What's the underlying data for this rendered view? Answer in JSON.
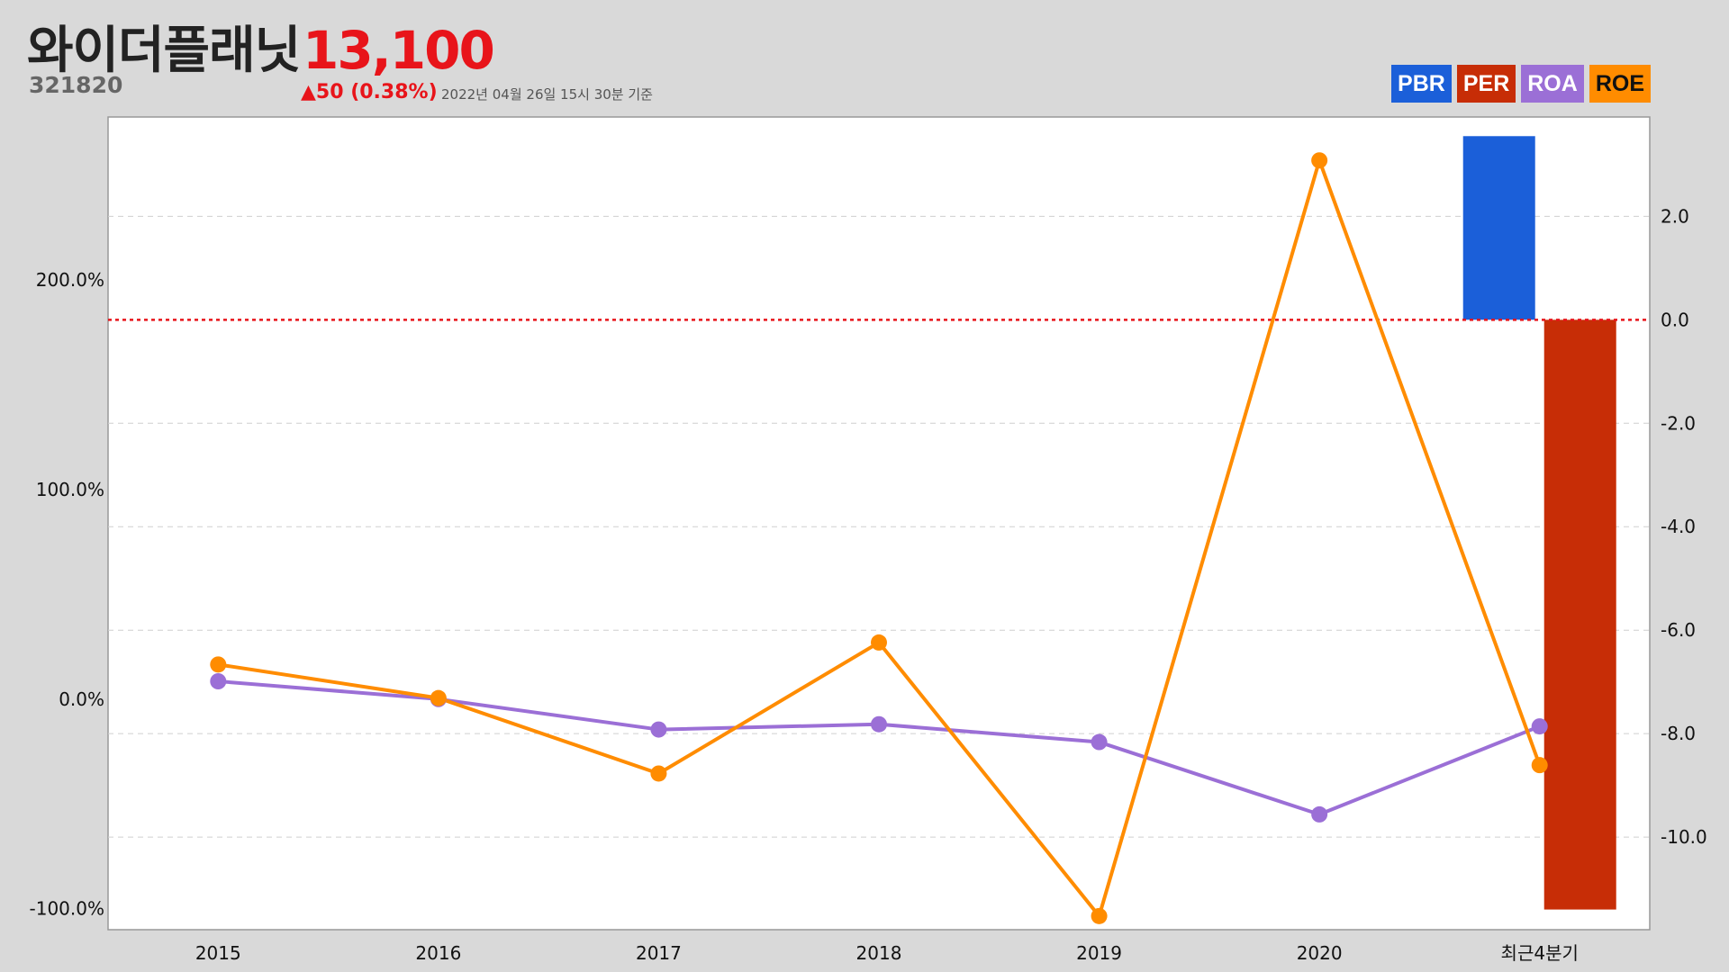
{
  "header": {
    "company_name": "와이더플래닛",
    "ticker": "321820",
    "price": "13,100",
    "change": "▲50 (0.38%)",
    "timestamp": "2022년 04월 26일 15시 30분 기준"
  },
  "legend": [
    {
      "label": "PBR",
      "color": "#1b5fd9",
      "text_color": "#ffffff"
    },
    {
      "label": "PER",
      "color": "#c72d06",
      "text_color": "#ffffff"
    },
    {
      "label": "ROA",
      "color": "#9b6fd6",
      "text_color": "#ffffff"
    },
    {
      "label": "ROE",
      "color": "#ff8c00",
      "text_color": "#111111"
    }
  ],
  "chart_data": {
    "type": "line",
    "categories": [
      "2015",
      "2016",
      "2017",
      "2018",
      "2019",
      "2020",
      "최근4분기"
    ],
    "series": [
      {
        "name": "ROA",
        "axis": "left",
        "color": "#9b6fd6",
        "values": [
          8.5,
          0.0,
          -14.5,
          -12.0,
          -20.5,
          -55.0,
          -13.0
        ]
      },
      {
        "name": "ROE",
        "axis": "left",
        "color": "#ff8c00",
        "values": [
          16.5,
          0.5,
          -35.5,
          27.0,
          -103.5,
          257.0,
          -31.5
        ]
      }
    ],
    "bars": [
      {
        "name": "PBR",
        "axis": "right",
        "color": "#1b5fd9",
        "category": "최근4분기",
        "value": 3.55
      },
      {
        "name": "PER",
        "axis": "right",
        "color": "#c72d06",
        "category": "최근4분기",
        "value": -11.4
      }
    ],
    "left_axis": {
      "ticks": [
        -100,
        0,
        100,
        200
      ],
      "tick_labels": [
        "-100.0%",
        "0.0%",
        "100.0%",
        "200.0%"
      ],
      "ylim": [
        -110,
        277.7
      ]
    },
    "right_axis": {
      "ticks": [
        2,
        0,
        -2,
        -4,
        -6,
        -8,
        -10
      ],
      "tick_labels": [
        "2.0",
        "0.0",
        "-2.0",
        "-4.0",
        "-6.0",
        "-8.0",
        "-10.0"
      ],
      "ylim": [
        -11.79,
        3.92
      ]
    },
    "reference_line": {
      "axis": "right",
      "value": 0,
      "color": "#e8141a",
      "style": "dotted"
    },
    "grid": true,
    "legend_position": "top-right"
  }
}
